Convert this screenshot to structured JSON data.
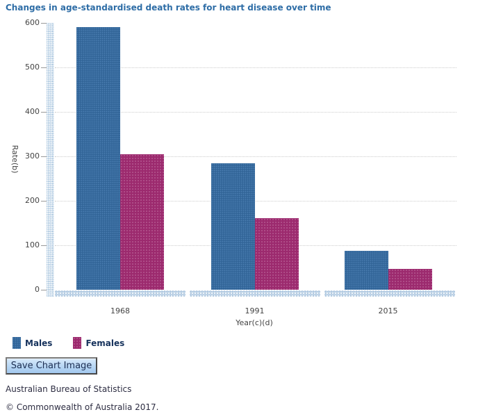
{
  "title": "Changes in age-standardised death rates for heart disease over time",
  "chart_data": {
    "type": "bar",
    "categories": [
      "1968",
      "1991",
      "2015"
    ],
    "series": [
      {
        "name": "Males",
        "color": "#336699",
        "values": [
          590,
          285,
          87
        ]
      },
      {
        "name": "Females",
        "color": "#9c2a6e",
        "values": [
          305,
          161,
          47
        ]
      }
    ],
    "title": "Changes in age-standardised death rates for heart disease over time",
    "xlabel": "Year(c)(d)",
    "ylabel": "Rate(b)",
    "ylim": [
      0,
      600
    ],
    "yticks": [
      0,
      100,
      200,
      300,
      400,
      500,
      600
    ],
    "grid": "horizontal-dotted",
    "legend_position": "bottom-left"
  },
  "legend": {
    "items": [
      {
        "label": "Males",
        "color": "#336699"
      },
      {
        "label": "Females",
        "color": "#9c2a6e"
      }
    ]
  },
  "button": {
    "label": "Save Chart Image"
  },
  "footer": {
    "org": "Australian Bureau of Statistics",
    "copyright": "© Commonwealth of Australia 2017."
  },
  "colors": {
    "title_text": "#2e6da6",
    "axis_band": "#c6d9ea",
    "gridline": "#cccccc",
    "tick_text": "#444444"
  }
}
